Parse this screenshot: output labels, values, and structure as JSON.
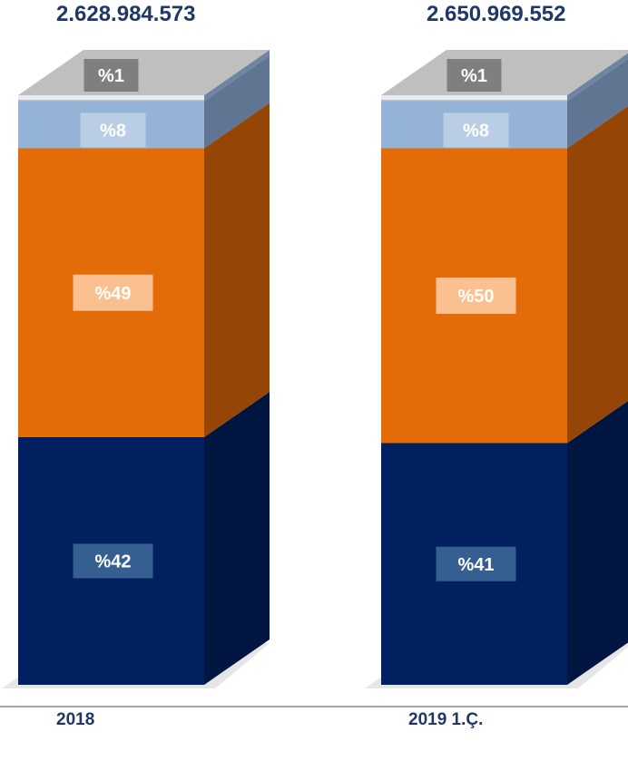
{
  "chart_data": {
    "type": "bar",
    "stacked": true,
    "categories": [
      "2018",
      "2019 1.Ç."
    ],
    "totals": [
      "2.628.984.573",
      "2.650.969.552"
    ],
    "series": [
      {
        "values": [
          42,
          41
        ],
        "labels": [
          "%42",
          "%41"
        ]
      },
      {
        "values": [
          49,
          50
        ],
        "labels": [
          "%49",
          "%50"
        ]
      },
      {
        "values": [
          8,
          8
        ],
        "labels": [
          "%8",
          "%8"
        ]
      },
      {
        "values": [
          1,
          1
        ],
        "labels": [
          "%1",
          "%1"
        ]
      }
    ],
    "ylim": [
      0,
      100
    ]
  },
  "colors": {
    "series_front": [
      "#002060",
      "#e36c09",
      "#95b3d7",
      "#bfbfbf"
    ],
    "series_side": [
      "#001540",
      "#954505",
      "#5f7591",
      "#6f84a0"
    ],
    "series_label_bg": [
      "#355f91",
      "#fac08f",
      "#b9cde5",
      "#7f7f7f"
    ],
    "text": "#1f3864"
  }
}
